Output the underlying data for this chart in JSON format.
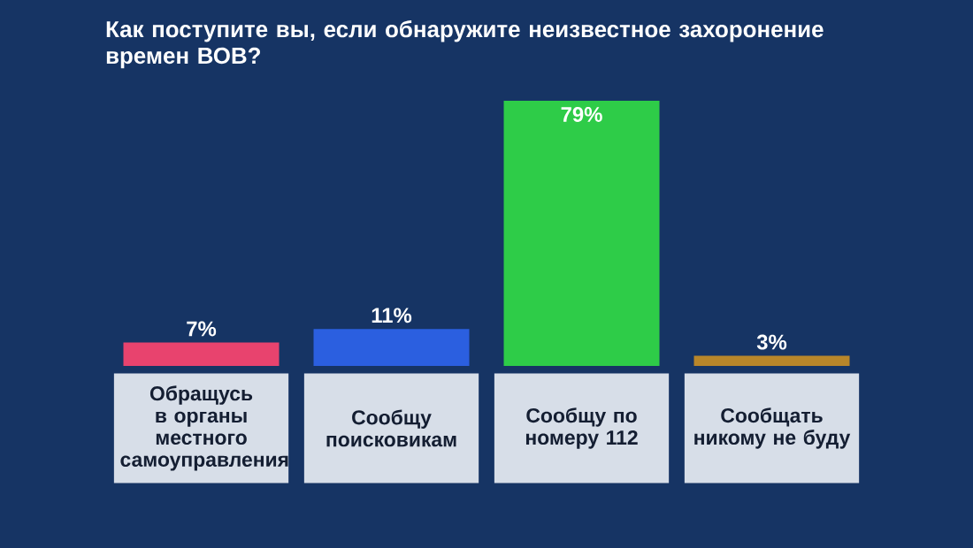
{
  "chart_data": {
    "type": "bar",
    "title": "Как поступите вы, если обнаружите неизвестное захоронение времен ВОВ?",
    "categories": [
      "Обращусь в органы местного самоуправления",
      "Сообщу поисковикам",
      "Сообщу по номеру 112",
      "Сообщать никому не буду"
    ],
    "values": [
      7,
      11,
      79,
      3
    ],
    "colors": [
      "#e8436e",
      "#2b5fe0",
      "#2ecc48",
      "#b8862a"
    ],
    "value_labels": [
      "7%",
      "11%",
      "79%",
      "3%"
    ]
  }
}
